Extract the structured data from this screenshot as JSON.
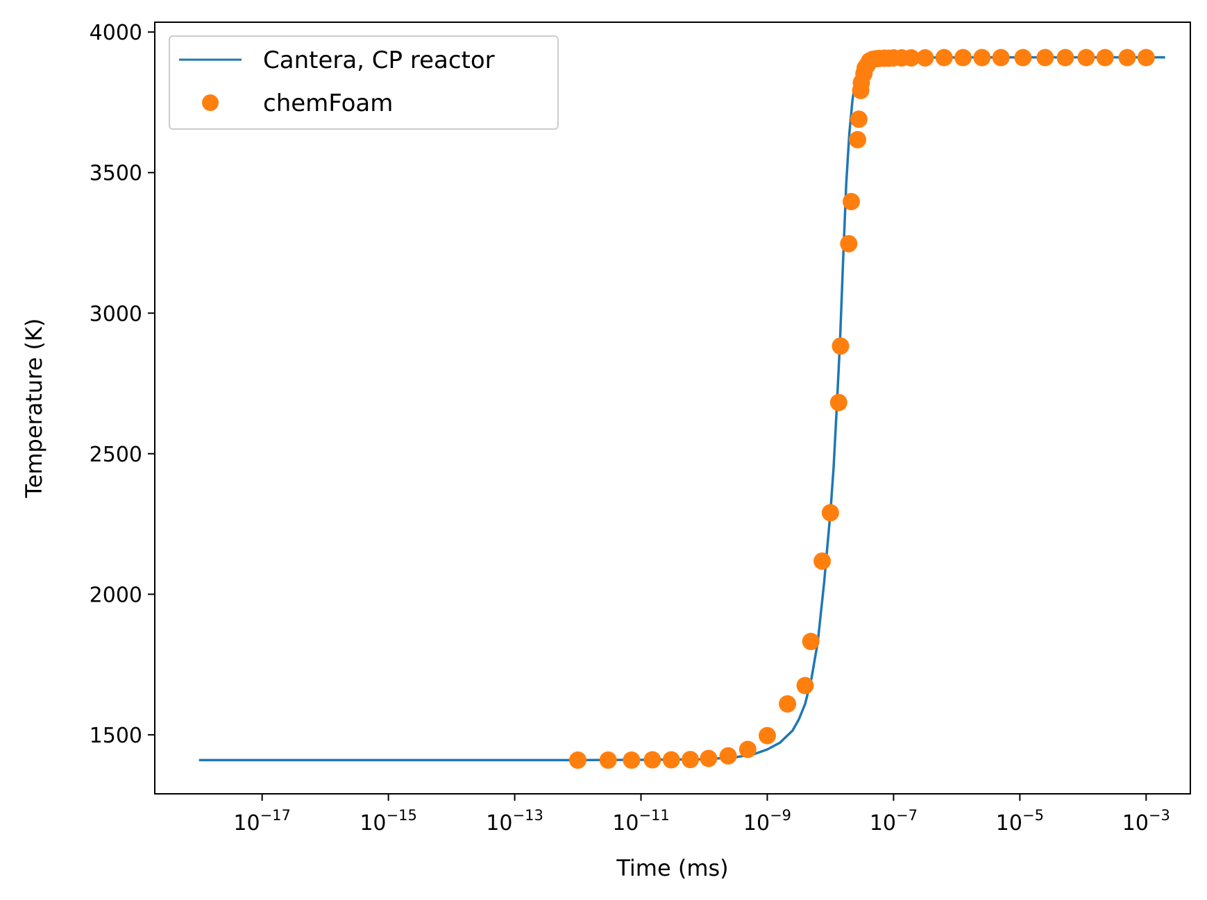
{
  "chart_data": {
    "type": "line",
    "xlabel": "Time (ms)",
    "ylabel": "Temperature (K)",
    "xscale": "log",
    "xlim_log10": [
      -18.7,
      -2.3
    ],
    "ylim": [
      1290,
      4035
    ],
    "x_ticks": [
      {
        "exp": -17,
        "base": "10",
        "sup": "−17"
      },
      {
        "exp": -15,
        "base": "10",
        "sup": "−15"
      },
      {
        "exp": -13,
        "base": "10",
        "sup": "−13"
      },
      {
        "exp": -11,
        "base": "10",
        "sup": "−11"
      },
      {
        "exp": -9,
        "base": "10",
        "sup": "−9"
      },
      {
        "exp": -7,
        "base": "10",
        "sup": "−7"
      },
      {
        "exp": -5,
        "base": "10",
        "sup": "−5"
      },
      {
        "exp": -3,
        "base": "10",
        "sup": "−3"
      }
    ],
    "y_ticks": [
      {
        "value": 1500,
        "label": "1500"
      },
      {
        "value": 2000,
        "label": "2000"
      },
      {
        "value": 2500,
        "label": "2500"
      },
      {
        "value": 3000,
        "label": "3000"
      },
      {
        "value": 3500,
        "label": "3500"
      },
      {
        "value": 4000,
        "label": "4000"
      }
    ],
    "grid": false,
    "legend_position": "top-left",
    "series": [
      {
        "name": "Cantera, CP reactor",
        "style": "line",
        "color": "#1f77b4",
        "log10_x": [
          -18.0,
          -12.0,
          -11.0,
          -10.0,
          -9.5,
          -9.2,
          -9.0,
          -8.8,
          -8.6,
          -8.5,
          -8.4,
          -8.3,
          -8.2,
          -8.1,
          -8.0,
          -7.95,
          -7.9,
          -7.85,
          -7.8,
          -7.75,
          -7.7,
          -7.65,
          -7.6,
          -7.55,
          -7.5,
          -7.45,
          -7.4,
          -7.3,
          -7.2,
          -7.0,
          -5.0,
          -2.7
        ],
        "y": [
          1410,
          1410,
          1411,
          1413,
          1420,
          1432,
          1448,
          1472,
          1515,
          1555,
          1610,
          1700,
          1830,
          2040,
          2290,
          2450,
          2660,
          2890,
          3180,
          3460,
          3640,
          3760,
          3830,
          3870,
          3895,
          3903,
          3907,
          3908,
          3909,
          3909,
          3910,
          3910
        ]
      },
      {
        "name": "chemFoam",
        "style": "markers",
        "color": "#ff7f0e",
        "log10_x": [
          -12.0,
          -11.52,
          -11.15,
          -10.82,
          -10.52,
          -10.22,
          -9.93,
          -9.62,
          -9.31,
          -9.0,
          -8.68,
          -8.4,
          -8.31,
          -8.13,
          -8.0,
          -7.87,
          -7.84,
          -7.71,
          -7.67,
          -7.57,
          -7.55,
          -7.52,
          -7.51,
          -7.47,
          -7.45,
          -7.41,
          -7.38,
          -7.33,
          -7.28,
          -7.23,
          -7.15,
          -7.08,
          -7.0,
          -6.87,
          -6.72,
          -6.5,
          -6.2,
          -5.9,
          -5.6,
          -5.3,
          -4.95,
          -4.6,
          -4.28,
          -3.95,
          -3.65,
          -3.3,
          -3.0
        ],
        "y": [
          1410,
          1410,
          1410,
          1411,
          1411,
          1412,
          1416,
          1425,
          1448,
          1497,
          1610,
          1675,
          1832,
          2118,
          2290,
          2682,
          2883,
          3247,
          3397,
          3617,
          3690,
          3792,
          3820,
          3852,
          3872,
          3885,
          3897,
          3903,
          3905,
          3906,
          3907,
          3907,
          3908,
          3908,
          3908,
          3908,
          3909,
          3909,
          3909,
          3909,
          3909,
          3909,
          3909,
          3909,
          3909,
          3909,
          3909
        ]
      }
    ]
  }
}
